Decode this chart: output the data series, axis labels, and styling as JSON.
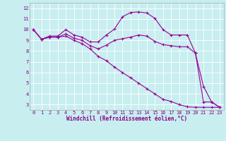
{
  "xlabel": "Windchill (Refroidissement éolien,°C)",
  "bg_color": "#c8eef0",
  "grid_color": "#ffffff",
  "line_color": "#990099",
  "label_color": "#880088",
  "xlim": [
    -0.5,
    23.5
  ],
  "ylim": [
    2.5,
    12.5
  ],
  "xticks": [
    0,
    1,
    2,
    3,
    4,
    5,
    6,
    7,
    8,
    9,
    10,
    11,
    12,
    13,
    14,
    15,
    16,
    17,
    18,
    19,
    20,
    21,
    22,
    23
  ],
  "yticks": [
    3,
    4,
    5,
    6,
    7,
    8,
    9,
    10,
    11,
    12
  ],
  "line1_x": [
    0,
    1,
    2,
    3,
    4,
    5,
    6,
    7,
    8,
    9,
    10,
    11,
    12,
    13,
    14,
    15,
    16,
    17,
    18,
    19,
    20,
    21,
    22,
    23
  ],
  "line1_y": [
    10.0,
    9.1,
    9.4,
    9.4,
    10.0,
    9.5,
    9.3,
    8.85,
    8.85,
    9.5,
    10.05,
    11.2,
    11.6,
    11.65,
    11.55,
    11.05,
    10.0,
    9.5,
    9.5,
    9.5,
    7.8,
    4.7,
    3.25,
    2.75
  ],
  "line2_x": [
    0,
    1,
    2,
    3,
    4,
    5,
    6,
    7,
    8,
    9,
    10,
    11,
    12,
    13,
    14,
    15,
    16,
    17,
    18,
    19,
    20,
    21,
    22,
    23
  ],
  "line2_y": [
    10.0,
    9.1,
    9.3,
    9.3,
    9.6,
    9.2,
    9.0,
    8.5,
    8.2,
    8.55,
    9.0,
    9.15,
    9.3,
    9.5,
    9.4,
    8.9,
    8.6,
    8.5,
    8.4,
    8.4,
    7.8,
    3.25,
    3.25,
    2.75
  ],
  "line3_x": [
    0,
    1,
    2,
    3,
    4,
    5,
    6,
    7,
    8,
    9,
    10,
    11,
    12,
    13,
    14,
    15,
    16,
    17,
    18,
    19,
    20,
    21,
    22,
    23
  ],
  "line3_y": [
    10.0,
    9.1,
    9.3,
    9.3,
    9.4,
    9.0,
    8.7,
    8.2,
    7.5,
    7.1,
    6.5,
    6.0,
    5.5,
    5.0,
    4.5,
    4.0,
    3.5,
    3.3,
    3.0,
    2.8,
    2.75,
    2.75,
    2.75,
    2.75
  ],
  "tick_fontsize": 5.0,
  "xlabel_fontsize": 5.5
}
